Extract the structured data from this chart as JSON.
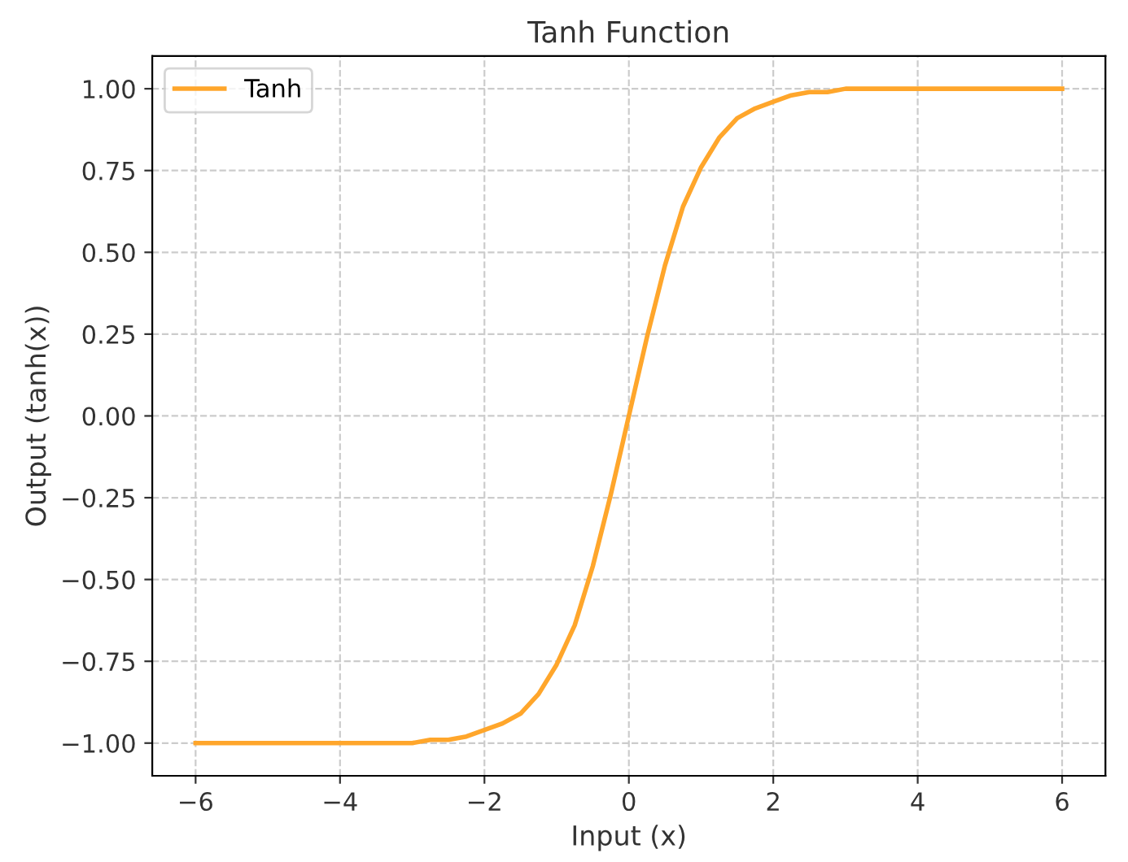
{
  "chart_data": {
    "type": "line",
    "title": "Tanh Function",
    "xlabel": "Input (x)",
    "ylabel": "Output (tanh(x))",
    "series": [
      {
        "name": "Tanh",
        "color": "#ffa62b",
        "x": [
          -6,
          -5,
          -4,
          -3.5,
          -3,
          -2.75,
          -2.5,
          -2.25,
          -2,
          -1.75,
          -1.5,
          -1.25,
          -1,
          -0.75,
          -0.5,
          -0.25,
          0,
          0.25,
          0.5,
          0.75,
          1,
          1.25,
          1.5,
          1.75,
          2,
          2.25,
          2.5,
          2.75,
          3,
          3.5,
          4,
          5,
          6
        ],
        "values": [
          -1.0,
          -1.0,
          -1.0,
          -1.0,
          -1.0,
          -0.99,
          -0.99,
          -0.98,
          -0.96,
          -0.94,
          -0.91,
          -0.85,
          -0.76,
          -0.64,
          -0.46,
          -0.24,
          0.0,
          0.24,
          0.46,
          0.64,
          0.76,
          0.85,
          0.91,
          0.94,
          0.96,
          0.98,
          0.99,
          0.99,
          1.0,
          1.0,
          1.0,
          1.0,
          1.0
        ]
      }
    ],
    "xlim": [
      -6.6,
      6.6
    ],
    "ylim": [
      -1.1,
      1.1
    ],
    "xticks": [
      {
        "value": -6,
        "label": "−6"
      },
      {
        "value": -4,
        "label": "−4"
      },
      {
        "value": -2,
        "label": "−2"
      },
      0,
      2,
      4,
      6
    ],
    "yticks": [
      {
        "value": -1,
        "label": "−1.00"
      },
      {
        "value": -0.75,
        "label": "−0.75"
      },
      {
        "value": -0.5,
        "label": "−0.50"
      },
      {
        "value": -0.25,
        "label": "−0.25"
      },
      {
        "value": 0,
        "label": "0.00"
      },
      {
        "value": 0.25,
        "label": "0.25"
      },
      {
        "value": 0.5,
        "label": "0.50"
      },
      {
        "value": 0.75,
        "label": "0.75"
      },
      {
        "value": 1,
        "label": "1.00"
      }
    ],
    "grid": true,
    "legend": "top left",
    "line_style": "solid",
    "marker": "none"
  }
}
